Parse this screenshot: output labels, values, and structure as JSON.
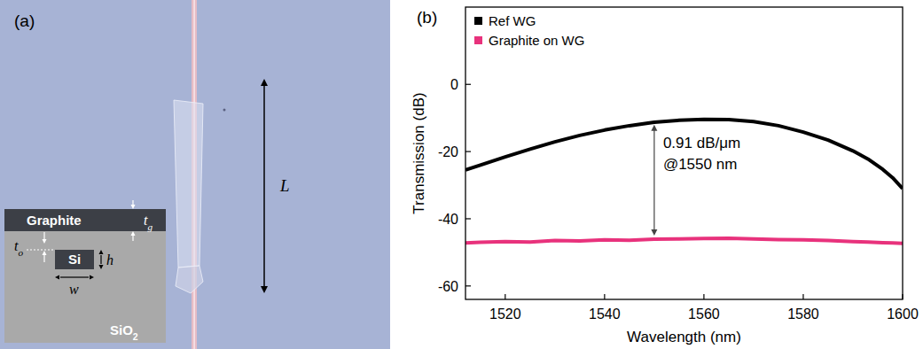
{
  "figure": {
    "panel_a": {
      "letter": "(a)",
      "length_label": "L",
      "inset": {
        "graphite": "Graphite",
        "si": "Si",
        "sio2": {
          "base": "SiO",
          "sub": "2"
        },
        "t_g": {
          "base": "t",
          "sub": "g"
        },
        "t_o": {
          "base": "t",
          "sub": "o"
        },
        "h": "h",
        "w": "w"
      }
    },
    "panel_b": {
      "letter": "(b)"
    }
  },
  "chart_data": {
    "type": "line",
    "x_label": "Wavelength (nm)",
    "y_label": "Transmission (dB)",
    "x": [
      1512,
      1515,
      1520,
      1525,
      1530,
      1535,
      1540,
      1545,
      1550,
      1555,
      1560,
      1565,
      1570,
      1575,
      1580,
      1585,
      1590,
      1593,
      1596,
      1598,
      1600
    ],
    "series": [
      {
        "name": "Ref WG",
        "color": "#000000",
        "marker": "square",
        "line_style": "solid",
        "values": [
          -25.5,
          -24,
          -21.6,
          -19.3,
          -17.1,
          -15.2,
          -13.6,
          -12.3,
          -11.3,
          -10.7,
          -10.4,
          -10.5,
          -11.1,
          -12.3,
          -14.2,
          -16.6,
          -19.8,
          -22.2,
          -25.3,
          -27.8,
          -31
        ]
      },
      {
        "name": "Graphite on WG",
        "color": "#e8327c",
        "marker": "square",
        "line_style": "solid",
        "values": [
          -47.2,
          -47.0,
          -46.8,
          -46.9,
          -46.5,
          -46.6,
          -46.3,
          -46.4,
          -46.1,
          -46.0,
          -45.9,
          -45.8,
          -46.0,
          -46.2,
          -46.3,
          -46.5,
          -46.8,
          -46.9,
          -47.1,
          -47.2,
          -47.3
        ]
      }
    ],
    "annotation": {
      "text": [
        "0.91 dB/μm",
        "@1550 nm"
      ],
      "x": 1550,
      "y_from": -12,
      "y_to": -45
    },
    "xlim": [
      1512,
      1600
    ],
    "xticks": [
      1520,
      1540,
      1560,
      1580,
      1600
    ],
    "ylim": [
      -64,
      23
    ],
    "yticks": [
      -60,
      -40,
      -20,
      0
    ],
    "legend": "upper left",
    "grid": false
  }
}
